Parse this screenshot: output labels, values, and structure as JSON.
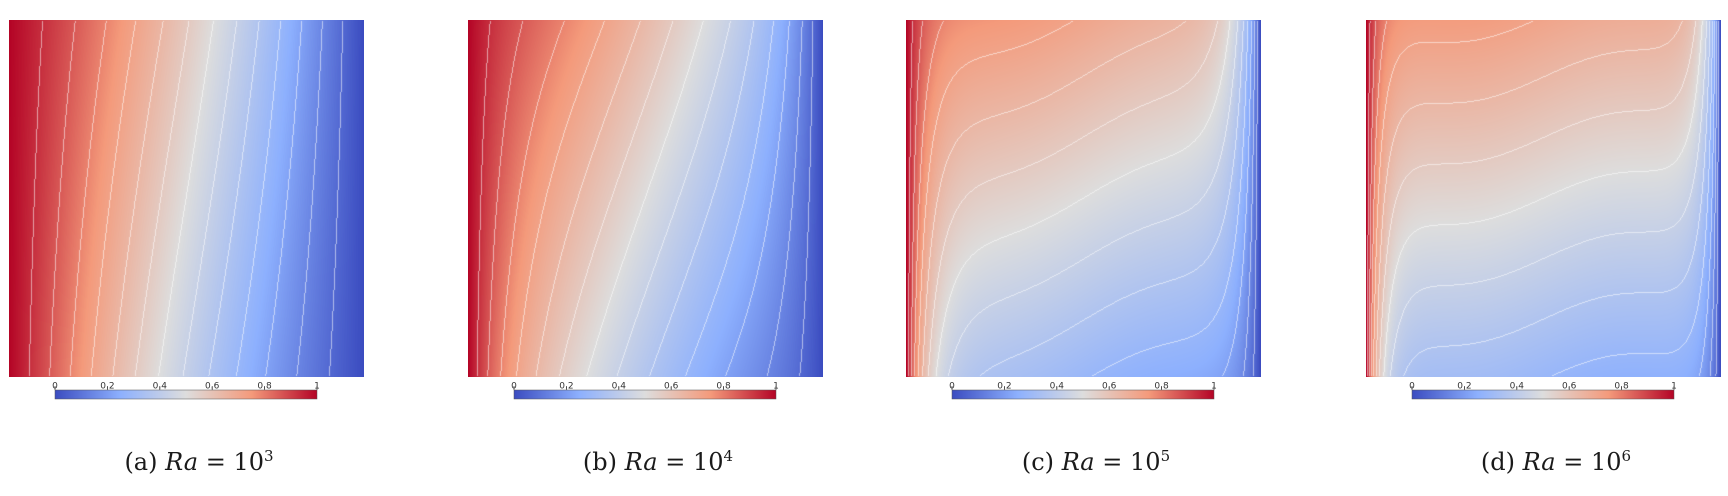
{
  "colormap": {
    "name": "cool-to-warm",
    "stops": [
      "#3b4cc0",
      "#8db0fe",
      "#dddddd",
      "#f49a7b",
      "#b40426"
    ]
  },
  "colorbar": {
    "ticks": [
      "0",
      "0.2",
      "0.4",
      "0.6",
      "0.8",
      "1"
    ]
  },
  "panels": [
    {
      "label": "(a)",
      "var": "Ra",
      "equals": "=",
      "base": "10",
      "exp": "3",
      "ra_exponent": 3
    },
    {
      "label": "(b)",
      "var": "Ra",
      "equals": "=",
      "base": "10",
      "exp": "4",
      "ra_exponent": 4
    },
    {
      "label": "(c)",
      "var": "Ra",
      "equals": "=",
      "base": "10",
      "exp": "5",
      "ra_exponent": 5
    },
    {
      "label": "(d)",
      "var": "Ra",
      "equals": "=",
      "base": "10",
      "exp": "6",
      "ra_exponent": 6
    }
  ]
}
